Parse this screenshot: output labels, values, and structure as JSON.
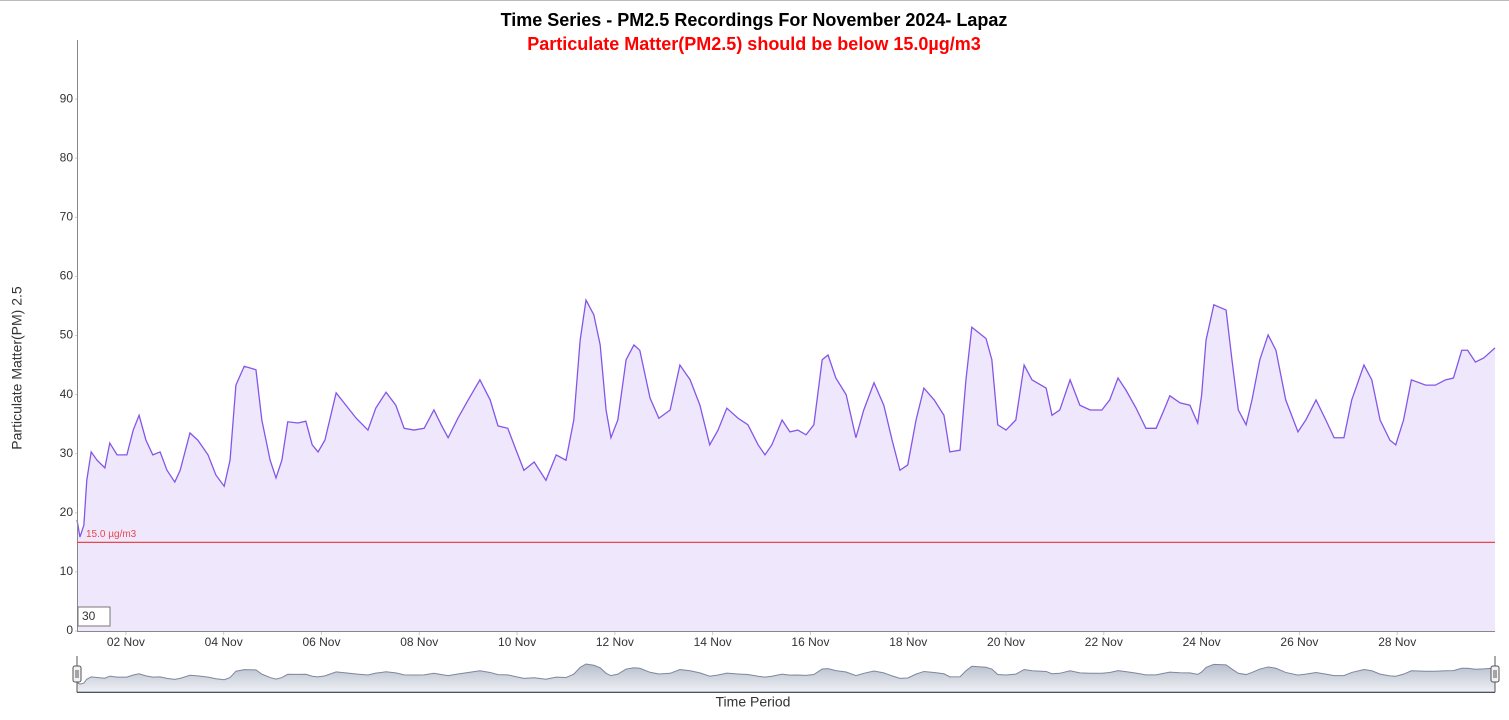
{
  "chart_data": {
    "type": "area",
    "title": "Time Series - PM2.5 Recordings For November 2024- Lapaz",
    "subtitle": "Particulate Matter(PM2.5) should be below 15.0µg/m3",
    "ylabel": "Particulate Matter(PM) 2.5",
    "xlabel": "Time Period",
    "range_input": "30",
    "threshold": 15,
    "threshold_label": "15.0 µg/m3",
    "threshold_color": "#e8474c",
    "color": "#8456e8",
    "fill": "#efe8fd",
    "xlim": [
      1,
      30
    ],
    "ylim": [
      0,
      100
    ],
    "yticks": [
      0,
      10,
      20,
      30,
      40,
      50,
      60,
      70,
      80,
      90
    ],
    "xticks": [
      {
        "value": 2,
        "label": "02 Nov"
      },
      {
        "value": 4,
        "label": "04 Nov"
      },
      {
        "value": 6,
        "label": "06 Nov"
      },
      {
        "value": 8,
        "label": "08 Nov"
      },
      {
        "value": 10,
        "label": "10 Nov"
      },
      {
        "value": 12,
        "label": "12 Nov"
      },
      {
        "value": 14,
        "label": "14 Nov"
      },
      {
        "value": 16,
        "label": "16 Nov"
      },
      {
        "value": 18,
        "label": "18 Nov"
      },
      {
        "value": 20,
        "label": "20 Nov"
      },
      {
        "value": 22,
        "label": "22 Nov"
      },
      {
        "value": 24,
        "label": "24 Nov"
      },
      {
        "value": 26,
        "label": "26 Nov"
      },
      {
        "value": 28,
        "label": "28 Nov"
      }
    ],
    "x": [
      1.0,
      1.06,
      1.14,
      1.2,
      1.29,
      1.41,
      1.57,
      1.67,
      1.82,
      2.02,
      2.15,
      2.27,
      2.41,
      2.55,
      2.7,
      2.84,
      3.0,
      3.11,
      3.31,
      3.47,
      3.68,
      3.84,
      4.01,
      4.13,
      4.25,
      4.42,
      4.66,
      4.78,
      4.95,
      5.07,
      5.19,
      5.31,
      5.52,
      5.68,
      5.81,
      5.93,
      6.07,
      6.3,
      6.5,
      6.71,
      6.95,
      7.11,
      7.32,
      7.52,
      7.69,
      7.89,
      8.1,
      8.3,
      8.46,
      8.59,
      8.79,
      9.0,
      9.24,
      9.45,
      9.61,
      9.81,
      9.98,
      10.14,
      10.35,
      10.59,
      10.8,
      11.0,
      11.16,
      11.29,
      11.41,
      11.57,
      11.7,
      11.82,
      11.92,
      12.06,
      12.23,
      12.39,
      12.51,
      12.72,
      12.9,
      13.13,
      13.33,
      13.54,
      13.74,
      13.94,
      14.11,
      14.29,
      14.52,
      14.72,
      14.93,
      15.07,
      15.21,
      15.42,
      15.58,
      15.74,
      15.91,
      16.07,
      16.24,
      16.36,
      16.52,
      16.73,
      16.93,
      17.09,
      17.3,
      17.5,
      17.67,
      17.83,
      17.99,
      18.16,
      18.32,
      18.53,
      18.73,
      18.85,
      19.06,
      19.18,
      19.3,
      19.59,
      19.71,
      19.83,
      20.0,
      20.2,
      20.37,
      20.53,
      20.82,
      20.94,
      21.1,
      21.31,
      21.51,
      21.72,
      21.96,
      22.12,
      22.29,
      22.45,
      22.66,
      22.86,
      23.07,
      23.23,
      23.35,
      23.56,
      23.76,
      23.92,
      24.0,
      24.09,
      24.25,
      24.5,
      24.62,
      24.75,
      24.91,
      25.03,
      25.19,
      25.36,
      25.52,
      25.72,
      25.97,
      26.13,
      26.34,
      26.54,
      26.71,
      26.91,
      27.07,
      27.32,
      27.48,
      27.65,
      27.85,
      27.97,
      28.13,
      28.29,
      28.58,
      28.78,
      28.99,
      29.15,
      29.32,
      29.44,
      29.6,
      29.77,
      30.0
    ],
    "values": [
      18.8,
      15.9,
      17.9,
      25.5,
      30.3,
      28.9,
      27.6,
      31.8,
      29.8,
      29.8,
      34.0,
      36.5,
      32.3,
      29.8,
      30.3,
      27.2,
      25.2,
      27.2,
      33.5,
      32.3,
      29.8,
      26.4,
      24.5,
      28.9,
      41.6,
      44.8,
      44.2,
      35.7,
      28.9,
      25.9,
      28.9,
      35.4,
      35.2,
      35.5,
      31.5,
      30.3,
      32.3,
      40.3,
      38.2,
      36.0,
      34.0,
      37.7,
      40.4,
      38.2,
      34.3,
      34.0,
      34.3,
      37.4,
      34.7,
      32.7,
      36.0,
      39.1,
      42.5,
      39.1,
      34.7,
      34.3,
      30.6,
      27.2,
      28.6,
      25.5,
      29.8,
      28.9,
      35.7,
      49.2,
      56.0,
      53.5,
      48.4,
      37.4,
      32.7,
      35.7,
      45.9,
      48.4,
      47.5,
      39.4,
      36.0,
      37.4,
      45.0,
      42.5,
      38.2,
      31.5,
      34.0,
      37.7,
      36.0,
      34.9,
      31.5,
      29.8,
      31.5,
      35.7,
      33.7,
      34.0,
      33.2,
      34.9,
      45.9,
      46.7,
      42.8,
      40.0,
      32.7,
      37.4,
      42.0,
      38.2,
      32.3,
      27.2,
      28.1,
      35.7,
      41.1,
      39.1,
      36.5,
      30.3,
      30.6,
      42.5,
      51.4,
      49.5,
      45.9,
      34.9,
      34.0,
      35.7,
      45.0,
      42.5,
      41.1,
      36.5,
      37.4,
      42.5,
      38.2,
      37.4,
      37.4,
      39.1,
      42.8,
      40.8,
      37.7,
      34.3,
      34.3,
      37.4,
      39.8,
      38.6,
      38.2,
      35.2,
      39.9,
      49.2,
      55.2,
      54.3,
      45.9,
      37.4,
      34.9,
      39.1,
      45.9,
      50.1,
      47.5,
      39.1,
      33.7,
      35.7,
      39.1,
      35.7,
      32.7,
      32.7,
      39.1,
      45.0,
      42.5,
      35.7,
      32.3,
      31.5,
      35.7,
      42.5,
      41.6,
      41.6,
      42.5,
      42.8,
      47.5,
      47.5,
      45.5,
      46.2,
      47.9
    ]
  }
}
